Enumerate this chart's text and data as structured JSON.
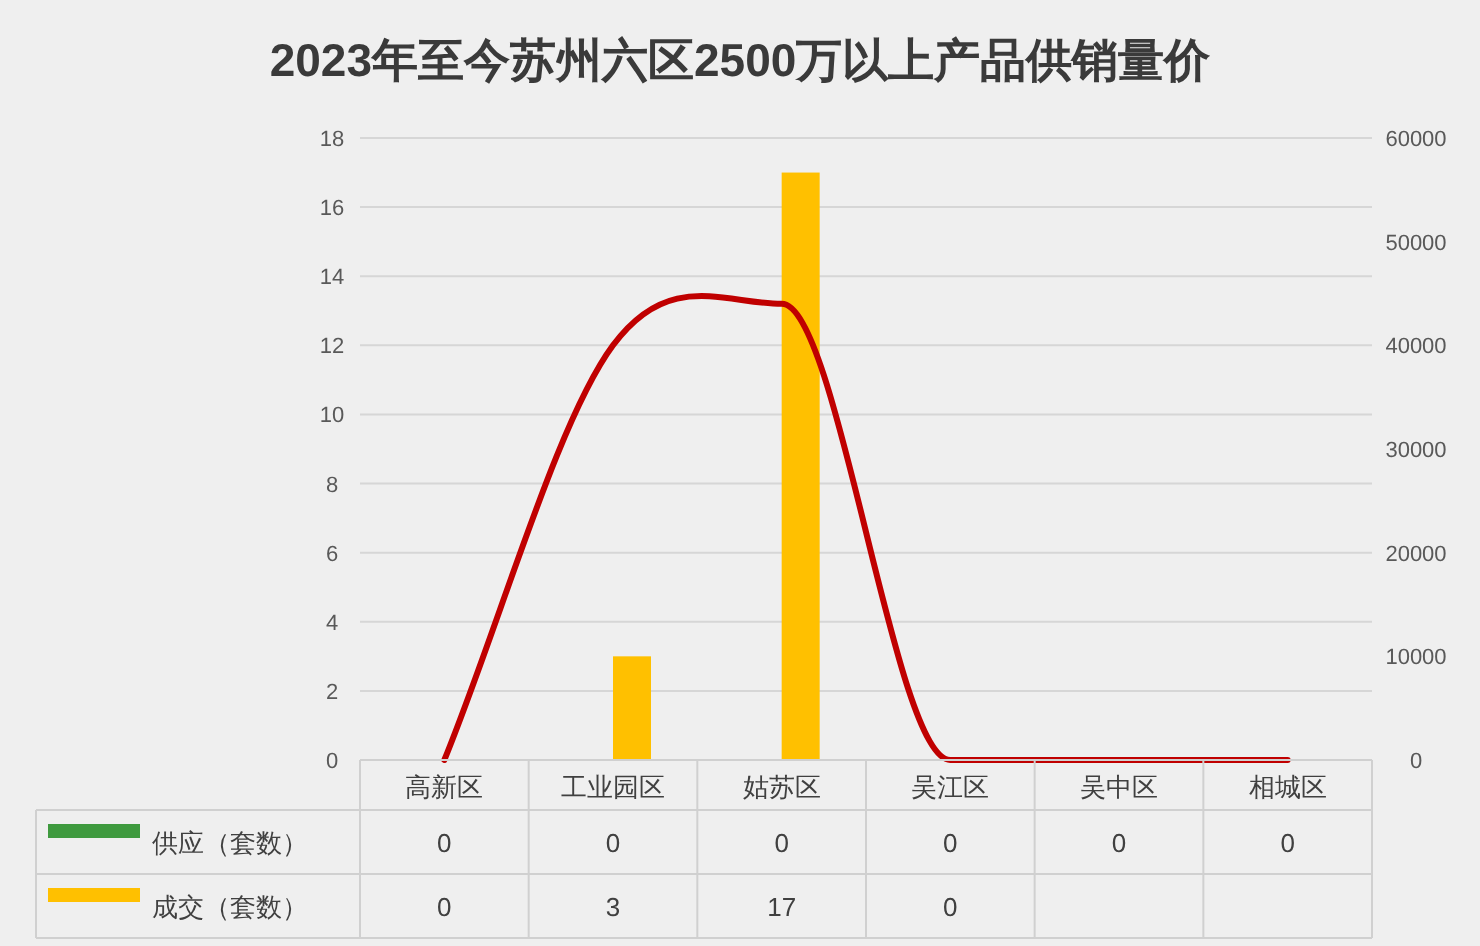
{
  "chart_data": {
    "type": "bar",
    "title": "2023年至今苏州六区2500万以上产品供销量价",
    "categories": [
      "高新区",
      "工业园区",
      "姑苏区",
      "吴江区",
      "吴中区",
      "相城区"
    ],
    "series": [
      {
        "name": "供应（套数）",
        "color": "#3f9a3f",
        "values": [
          0,
          0,
          0,
          0,
          0,
          0
        ],
        "value_labels": [
          "0",
          "0",
          "0",
          "0",
          "0",
          "0"
        ]
      },
      {
        "name": "成交（套数）",
        "color": "#ffc000",
        "values": [
          0,
          3,
          17,
          0,
          null,
          null
        ],
        "value_labels": [
          "0",
          "3",
          "17",
          "0",
          null,
          null
        ]
      },
      {
        "type": "line",
        "axis": "y2",
        "color": "#c00000",
        "values": [
          0,
          40000,
          44000,
          0,
          0,
          0
        ]
      }
    ],
    "ylim": [
      0,
      18
    ],
    "yticks": [
      0,
      2,
      4,
      6,
      8,
      10,
      12,
      14,
      16,
      18
    ],
    "y2lim": [
      0,
      60000
    ],
    "y2ticks": [
      0,
      10000,
      20000,
      30000,
      40000,
      50000,
      60000
    ],
    "grid": "y",
    "legend": "bottom"
  }
}
